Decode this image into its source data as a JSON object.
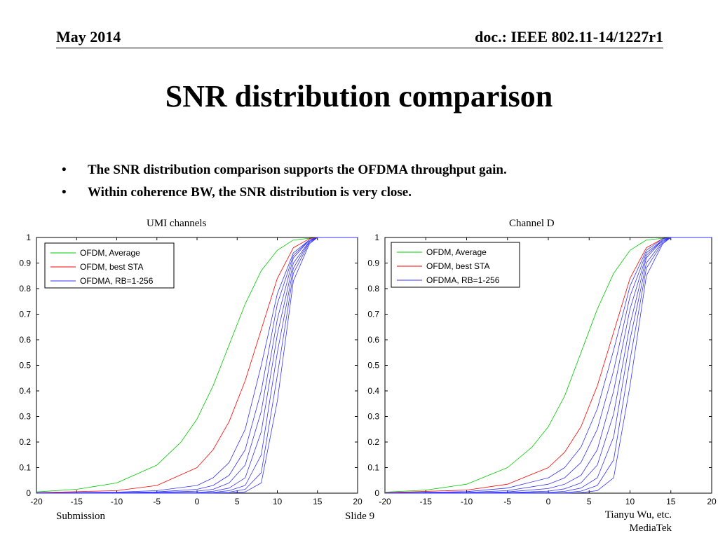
{
  "header": {
    "date": "May 2014",
    "doc": "doc.: IEEE 802.11-14/1227r1"
  },
  "title": "SNR distribution comparison",
  "bullets": [
    "The SNR distribution comparison supports the OFDMA throughput gain.",
    "Within coherence BW, the SNR distribution is very close."
  ],
  "bullet_glyph": "•",
  "footer": {
    "left": "Submission",
    "center": "Slide 9",
    "right_line1": "Tianyu Wu, etc.",
    "right_line2": "MediaTek"
  },
  "colors": {
    "average": "#00cc00",
    "best_sta": "#ff0000",
    "ofdma": "#3333ff"
  },
  "chart_data": [
    {
      "type": "line",
      "title": "UMI channels",
      "xlabel": "",
      "ylabel": "",
      "xlim": [
        -20,
        20
      ],
      "ylim": [
        0,
        1
      ],
      "xticks": [
        -20,
        -15,
        -10,
        -5,
        0,
        5,
        10,
        15,
        20
      ],
      "yticks": [
        0,
        0.1,
        0.2,
        0.3,
        0.4,
        0.5,
        0.6,
        0.7,
        0.8,
        0.9,
        1
      ],
      "legend": [
        "OFDM, Average",
        "OFDM, best STA",
        "OFDMA, RB=1-256"
      ],
      "legend_position": "top-left",
      "series": [
        {
          "name": "OFDM, Average",
          "x": [
            -20,
            -15,
            -10,
            -5,
            -2,
            0,
            2,
            4,
            6,
            8,
            10,
            12,
            15,
            20
          ],
          "values": [
            0.005,
            0.015,
            0.04,
            0.11,
            0.2,
            0.29,
            0.42,
            0.58,
            0.74,
            0.87,
            0.95,
            0.99,
            1,
            1
          ]
        },
        {
          "name": "OFDM, best STA",
          "x": [
            -20,
            -10,
            -5,
            0,
            2,
            4,
            6,
            8,
            10,
            12,
            14,
            15,
            20
          ],
          "values": [
            0.002,
            0.01,
            0.03,
            0.1,
            0.17,
            0.28,
            0.44,
            0.64,
            0.84,
            0.96,
            0.995,
            1,
            1
          ]
        },
        {
          "name": "OFDMA, RB=1-256",
          "x": [
            -20,
            -10,
            -5,
            0,
            2,
            4,
            6,
            8,
            10,
            12,
            14,
            15,
            20
          ],
          "values": [
            0.001,
            0.004,
            0.01,
            0.03,
            0.06,
            0.12,
            0.25,
            0.5,
            0.78,
            0.94,
            0.99,
            1,
            1
          ]
        },
        {
          "name": "OFDMA, RB=1-256",
          "x": [
            -20,
            -10,
            -5,
            0,
            2,
            4,
            6,
            8,
            10,
            12,
            14,
            15,
            20
          ],
          "values": [
            0.001,
            0.002,
            0.005,
            0.015,
            0.03,
            0.07,
            0.17,
            0.4,
            0.74,
            0.93,
            0.99,
            1,
            1
          ]
        },
        {
          "name": "OFDMA, RB=1-256",
          "x": [
            -20,
            -10,
            -5,
            0,
            2,
            4,
            6,
            8,
            10,
            12,
            14,
            15,
            20
          ],
          "values": [
            0,
            0.001,
            0.003,
            0.008,
            0.015,
            0.04,
            0.11,
            0.32,
            0.68,
            0.92,
            0.99,
            1,
            1
          ]
        },
        {
          "name": "OFDMA, RB=1-256",
          "x": [
            -20,
            -10,
            -5,
            0,
            2,
            4,
            6,
            8,
            10,
            12,
            14,
            15,
            20
          ],
          "values": [
            0,
            0,
            0.001,
            0.003,
            0.007,
            0.02,
            0.06,
            0.24,
            0.62,
            0.9,
            0.985,
            1,
            1
          ]
        },
        {
          "name": "OFDMA, RB=1-256",
          "x": [
            -20,
            -10,
            -5,
            0,
            2,
            4,
            6,
            8,
            10,
            12,
            14,
            15,
            20
          ],
          "values": [
            0,
            0,
            0,
            0.001,
            0.003,
            0.01,
            0.03,
            0.15,
            0.55,
            0.88,
            0.985,
            1,
            1
          ]
        },
        {
          "name": "OFDMA, RB=1-256",
          "x": [
            -20,
            -10,
            -5,
            0,
            2,
            4,
            6,
            8,
            10,
            12,
            14,
            15,
            20
          ],
          "values": [
            0,
            0,
            0,
            0,
            0.001,
            0.004,
            0.015,
            0.08,
            0.46,
            0.86,
            0.98,
            1,
            1
          ]
        },
        {
          "name": "OFDMA, RB=1-256",
          "x": [
            -20,
            -10,
            -5,
            0,
            2,
            4,
            6,
            8,
            10,
            12,
            14,
            15,
            20
          ],
          "values": [
            0,
            0,
            0,
            0,
            0,
            0.001,
            0.005,
            0.04,
            0.36,
            0.83,
            0.975,
            1,
            1
          ]
        }
      ]
    },
    {
      "type": "line",
      "title": "Channel D",
      "xlabel": "",
      "ylabel": "",
      "xlim": [
        -20,
        20
      ],
      "ylim": [
        0,
        1
      ],
      "xticks": [
        -20,
        -15,
        -10,
        -5,
        0,
        5,
        10,
        15,
        20
      ],
      "yticks": [
        0,
        0.1,
        0.2,
        0.3,
        0.4,
        0.5,
        0.6,
        0.7,
        0.8,
        0.9,
        1
      ],
      "legend": [
        "OFDM, Average",
        "OFDM, best STA",
        "OFDMA, RB=1-256"
      ],
      "legend_position": "top-left",
      "series": [
        {
          "name": "OFDM, Average",
          "x": [
            -20,
            -15,
            -10,
            -5,
            -2,
            0,
            2,
            4,
            6,
            8,
            10,
            12,
            15,
            20
          ],
          "values": [
            0.004,
            0.012,
            0.035,
            0.1,
            0.18,
            0.26,
            0.38,
            0.55,
            0.72,
            0.86,
            0.95,
            0.99,
            1,
            1
          ]
        },
        {
          "name": "OFDM, best STA",
          "x": [
            -20,
            -10,
            -5,
            0,
            2,
            4,
            6,
            8,
            10,
            12,
            14,
            15,
            20
          ],
          "values": [
            0.002,
            0.012,
            0.035,
            0.1,
            0.16,
            0.26,
            0.42,
            0.63,
            0.84,
            0.96,
            0.995,
            1,
            1
          ]
        },
        {
          "name": "OFDMA, RB=1-256",
          "x": [
            -20,
            -10,
            -5,
            0,
            2,
            4,
            6,
            8,
            10,
            12,
            14,
            15,
            20
          ],
          "values": [
            0.001,
            0.006,
            0.02,
            0.06,
            0.1,
            0.18,
            0.33,
            0.56,
            0.81,
            0.95,
            0.995,
            1,
            1
          ]
        },
        {
          "name": "OFDMA, RB=1-256",
          "x": [
            -20,
            -10,
            -5,
            0,
            2,
            4,
            6,
            8,
            10,
            12,
            14,
            15,
            20
          ],
          "values": [
            0,
            0.003,
            0.01,
            0.035,
            0.06,
            0.12,
            0.25,
            0.48,
            0.77,
            0.94,
            0.99,
            1,
            1
          ]
        },
        {
          "name": "OFDMA, RB=1-256",
          "x": [
            -20,
            -10,
            -5,
            0,
            2,
            4,
            6,
            8,
            10,
            12,
            14,
            15,
            20
          ],
          "values": [
            0,
            0.001,
            0.005,
            0.018,
            0.035,
            0.07,
            0.17,
            0.4,
            0.72,
            0.93,
            0.99,
            1,
            1
          ]
        },
        {
          "name": "OFDMA, RB=1-256",
          "x": [
            -20,
            -10,
            -5,
            0,
            2,
            4,
            6,
            8,
            10,
            12,
            14,
            15,
            20
          ],
          "values": [
            0,
            0,
            0.002,
            0.008,
            0.017,
            0.04,
            0.11,
            0.31,
            0.66,
            0.92,
            0.99,
            1,
            1
          ]
        },
        {
          "name": "OFDMA, RB=1-256",
          "x": [
            -20,
            -10,
            -5,
            0,
            2,
            4,
            6,
            8,
            10,
            12,
            14,
            15,
            20
          ],
          "values": [
            0,
            0,
            0.001,
            0.003,
            0.007,
            0.02,
            0.06,
            0.22,
            0.6,
            0.9,
            0.985,
            1,
            1
          ]
        },
        {
          "name": "OFDMA, RB=1-256",
          "x": [
            -20,
            -10,
            -5,
            0,
            2,
            4,
            6,
            8,
            10,
            12,
            14,
            15,
            20
          ],
          "values": [
            0,
            0,
            0,
            0.001,
            0.002,
            0.008,
            0.03,
            0.13,
            0.52,
            0.88,
            0.98,
            1,
            1
          ]
        },
        {
          "name": "OFDMA, RB=1-256",
          "x": [
            -20,
            -10,
            -5,
            0,
            2,
            4,
            6,
            8,
            10,
            12,
            14,
            15,
            20
          ],
          "values": [
            0,
            0,
            0,
            0,
            0,
            0.002,
            0.01,
            0.06,
            0.42,
            0.85,
            0.975,
            1,
            1
          ]
        }
      ]
    }
  ]
}
